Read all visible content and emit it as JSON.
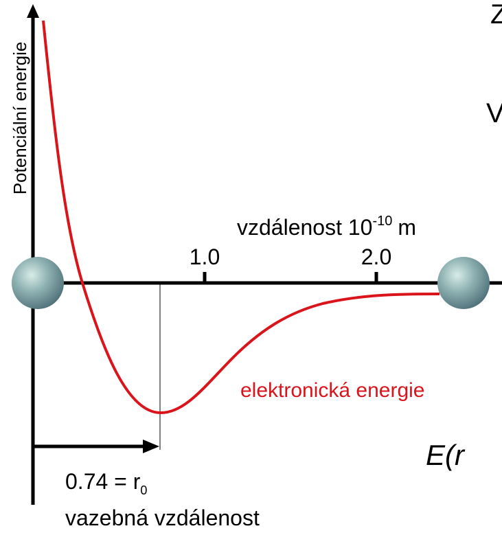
{
  "axis_label_y": "Potenciální energie",
  "axis_label_x": {
    "text": "vzdálenost 10",
    "exponent": "-10",
    "unit": "m"
  },
  "ticks": [
    "1.0",
    "2.0"
  ],
  "curve_label": "elektronická energie",
  "bond": {
    "value_text": "0.74 = r",
    "subscript": "0",
    "label": "vazebná vzdálenost"
  },
  "formula": {
    "symbol": "E",
    "argument": "(r"
  },
  "fragments": [
    "Z",
    "V"
  ]
}
